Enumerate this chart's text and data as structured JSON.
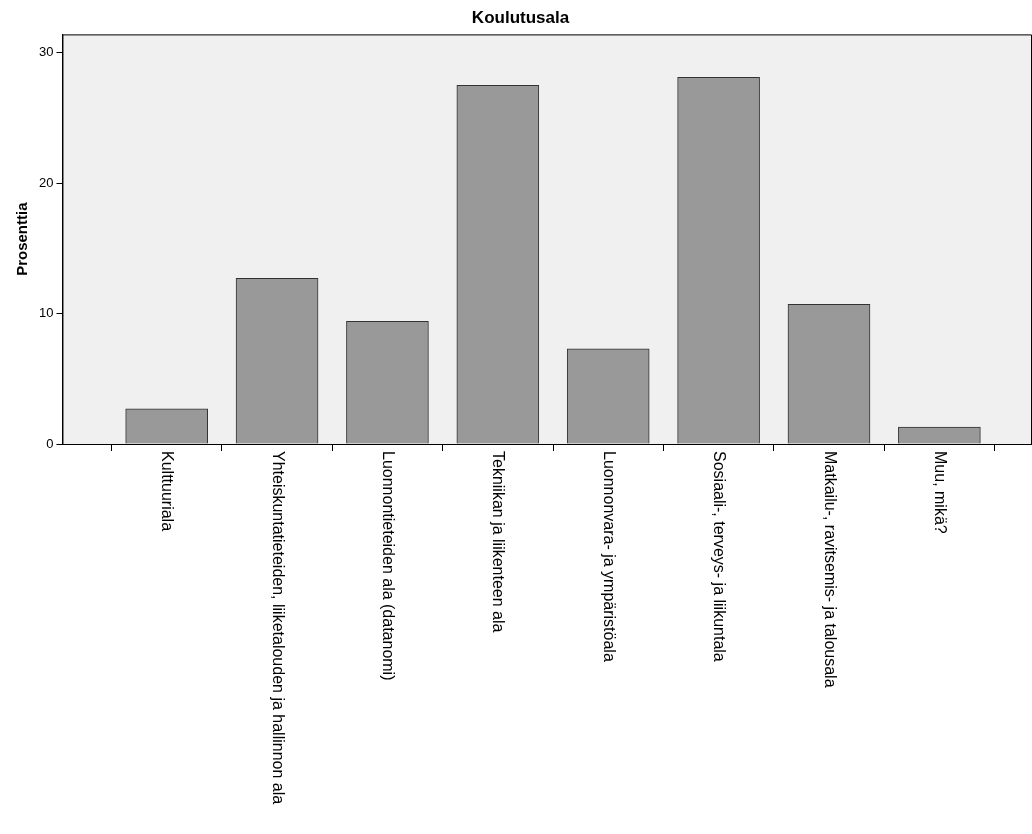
{
  "chart_data": {
    "type": "bar",
    "title": "Koulutusala",
    "ylabel": "Prosenttia",
    "categories": [
      "Kulttuuriala",
      "Yhteiskuntatieteiden, liiketalouden ja hallinnon ala",
      "Luonnontieteiden ala (datanomi)",
      "Tekniikan ja liikenteen ala",
      "Luonnonvara- ja ympäristöala",
      "Sosiaali-, terveys- ja liikuntala",
      "Matkailu-, ravitsemis- ja talousala",
      "Muu, mikä?"
    ],
    "values": [
      2.7,
      12.7,
      9.4,
      27.5,
      7.3,
      28.1,
      10.7,
      1.3
    ],
    "color": "#999999",
    "ylim": [
      0,
      31.4
    ],
    "yticks": [
      0,
      10,
      20,
      30
    ],
    "grid": false,
    "legend": false
  }
}
